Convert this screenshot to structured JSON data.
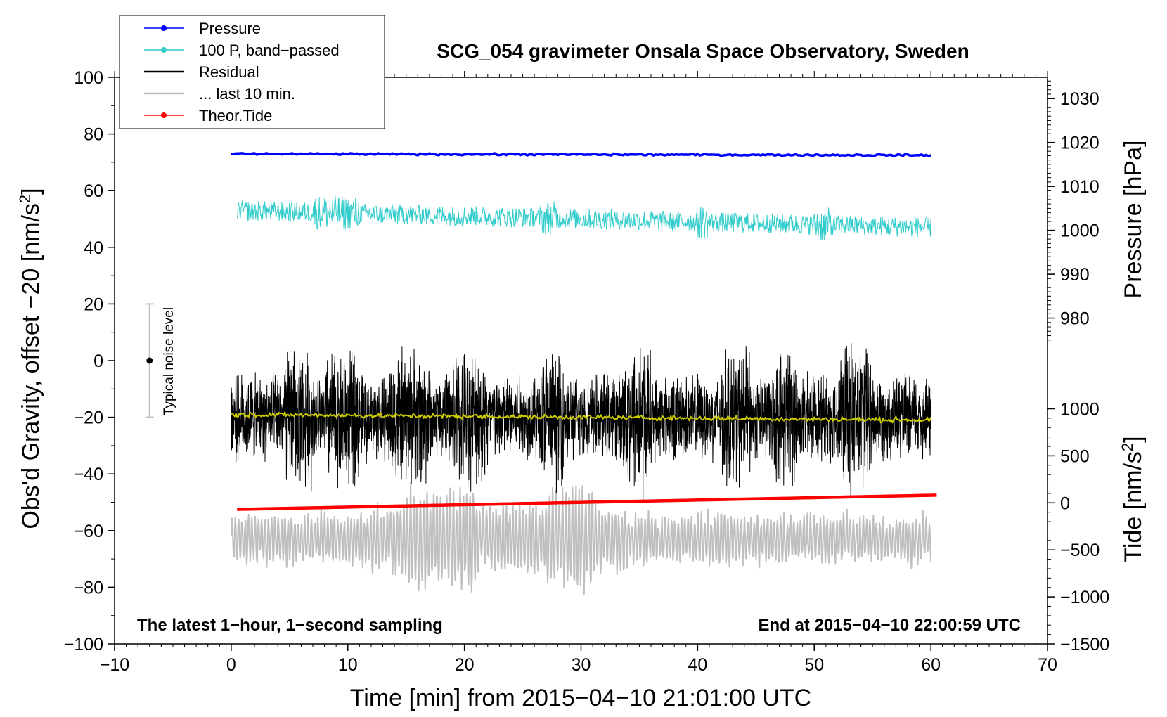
{
  "chart_data": {
    "type": "line",
    "title": "SCG_054 gravimeter Onsala Space Observatory, Sweden",
    "xlabel": "Time [min] from 2015−04−10 21:01:00 UTC",
    "ylabel_left": "Obs'd Gravity, offset −20 [nm/s",
    "ylabel_left_sup": "2",
    "ylabel_left_close": "]",
    "ylabel_right_upper": "Pressure [hPa]",
    "ylabel_right_lower": "Tide [nm/s",
    "ylabel_right_lower_sup": "2",
    "ylabel_right_lower_close": "]",
    "xlim": [
      -10,
      70
    ],
    "ylim": [
      -100,
      100
    ],
    "pressure_axis": {
      "data_min": 980,
      "data_max": 1030,
      "anchor_value_1": 1000,
      "anchor_gravity_1": 46,
      "anchor_value_2": 1020,
      "anchor_gravity_2": 77
    },
    "tide_axis": {
      "data_min": -1500,
      "data_max": 1000,
      "anchor_value_1": -1500,
      "anchor_gravity_1": -100,
      "anchor_value_2": 1000,
      "anchor_gravity_2": -17
    },
    "x_ticks": [
      "−10",
      "0",
      "10",
      "20",
      "30",
      "40",
      "50",
      "60",
      "70"
    ],
    "x_tick_values": [
      -10,
      0,
      10,
      20,
      30,
      40,
      50,
      60,
      70
    ],
    "y_ticks": [
      "100",
      "80",
      "60",
      "40",
      "20",
      "0",
      "−20",
      "−40",
      "−60",
      "−80",
      "−100"
    ],
    "y_tick_values": [
      100,
      80,
      60,
      40,
      20,
      0,
      -20,
      -40,
      -60,
      -80,
      -100
    ],
    "pressure_ticks": [
      "1030",
      "1020",
      "1010",
      "1000",
      "990",
      "980"
    ],
    "pressure_tick_values": [
      1030,
      1020,
      1010,
      1000,
      990,
      980
    ],
    "tide_ticks": [
      "1000",
      "500",
      "0",
      "−500",
      "−1000",
      "−1500"
    ],
    "tide_tick_values": [
      1000,
      500,
      0,
      -500,
      -1000,
      -1500
    ],
    "legend": [
      {
        "label": "Pressure",
        "color": "#0000ff",
        "marker": true
      },
      {
        "label": "100 P, band−passed",
        "color": "#33cccc",
        "marker": true
      },
      {
        "label": "Residual",
        "color": "#000000",
        "marker": false
      },
      {
        "label": "... last 10 min.",
        "color": "#bfbfbf",
        "marker": false
      },
      {
        "label": "Theor.Tide",
        "color": "#ff0000",
        "marker": true
      }
    ],
    "annotations": {
      "left": "The latest 1−hour, 1−second sampling",
      "right": "End at 2015−04−10 22:00:59 UTC",
      "noise": "Typical noise level"
    },
    "noise_bar": {
      "x": -7,
      "center": 0,
      "low": -20,
      "high": 20
    },
    "series": [
      {
        "name": "Pressure",
        "color": "#0000ff",
        "x_start": 0,
        "x_end": 60,
        "y_start": 73,
        "y_end": 72.5,
        "noise_amp": 0.3
      },
      {
        "name": "100 P, band-passed",
        "color": "#33cccc",
        "x_start": 0.5,
        "x_end": 60,
        "y_start": 53,
        "y_end": 47,
        "noise_amp": 3.5
      },
      {
        "name": "Residual",
        "color": "#000000",
        "x_start": 0,
        "x_end": 60,
        "y_center": -20,
        "noise_amp": 17,
        "bursts": [
          [
            4.5,
            7
          ],
          [
            8,
            11
          ],
          [
            13.5,
            17
          ],
          [
            19,
            22
          ],
          [
            26.5,
            28.5
          ],
          [
            33.5,
            36
          ],
          [
            42,
            44.5
          ],
          [
            46.5,
            48.5
          ],
          [
            52,
            55
          ]
        ]
      },
      {
        "name": "Residual smoothed",
        "color": "#cccc00",
        "x_start": 0,
        "x_end": 60,
        "y_start": -19,
        "y_end": -21,
        "noise_amp": 0.8
      },
      {
        "name": "... last 10 min.",
        "color": "#bfbfbf",
        "x_start": 0,
        "x_end": 60,
        "y_center": -63,
        "noise_amp": 9
      },
      {
        "name": "Theor.Tide",
        "color": "#ff0000",
        "x_start": 0.5,
        "x_end": 60.5,
        "y_start": -52.5,
        "y_end": -47.5
      }
    ]
  }
}
